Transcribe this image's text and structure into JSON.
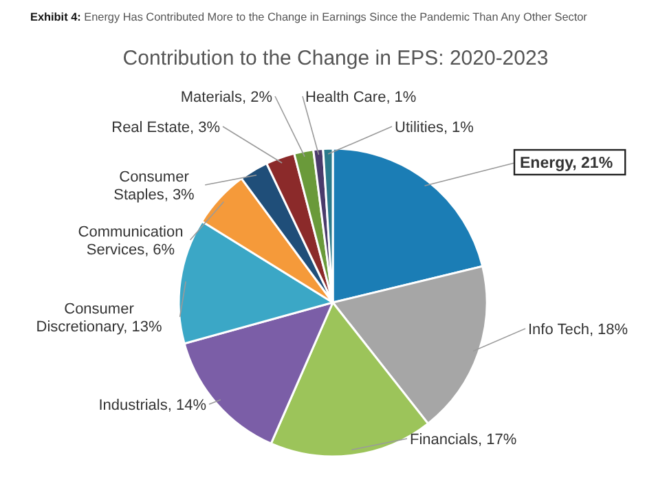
{
  "chart_data": {
    "type": "pie",
    "title": "Exhibit 4: Energy Has Contributed More to the Change in Earnings Since the Pandemic Than Any Other Sector",
    "subtitle": "Contribution to the Change in EPS: 2020-2023",
    "categories": [
      "Energy",
      "Info Tech",
      "Financials",
      "Industrials",
      "Consumer Discretionary",
      "Communication Services",
      "Consumer Staples",
      "Real Estate",
      "Materials",
      "Health Care",
      "Utilities"
    ],
    "values": [
      21,
      18,
      17,
      14,
      13,
      6,
      3,
      3,
      2,
      1,
      1
    ],
    "value_labels": [
      "21%",
      "18%",
      "17%",
      "14%",
      "13%",
      "6%",
      "3%",
      "3%",
      "2%",
      "1%",
      "1%"
    ],
    "colors": [
      "#1b7db5",
      "#a6a6a6",
      "#9cc45a",
      "#7b5ea7",
      "#3ba7c6",
      "#f59a3a",
      "#1f4e79",
      "#8b2a2a",
      "#6a9a3a",
      "#4a3b6b",
      "#2b7a8c"
    ],
    "legend": false
  }
}
